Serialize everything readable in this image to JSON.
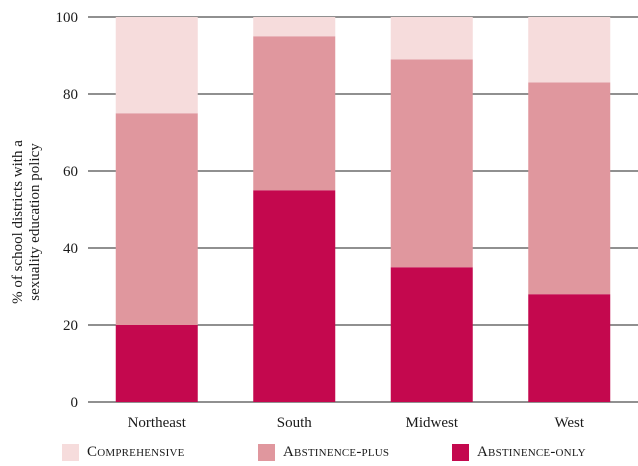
{
  "chart_data": {
    "type": "bar",
    "stacked": true,
    "categories": [
      "Northeast",
      "South",
      "Midwest",
      "West"
    ],
    "series": [
      {
        "name": "Abstinence-only",
        "color": "#c4084e",
        "values": [
          20,
          55,
          35,
          28
        ]
      },
      {
        "name": "Abstinence-plus",
        "color": "#e0979e",
        "values": [
          55,
          40,
          54,
          55
        ]
      },
      {
        "name": "Comprehensive",
        "color": "#f6dcdc",
        "values": [
          25,
          5,
          11,
          17
        ]
      }
    ],
    "ylabel_lines": [
      "% of school districts with a",
      "sexuality education policy"
    ],
    "yticks": [
      0,
      20,
      40,
      60,
      80,
      100
    ],
    "ylim": [
      0,
      100
    ],
    "grid": "horizontal",
    "legend_position": "bottom"
  }
}
